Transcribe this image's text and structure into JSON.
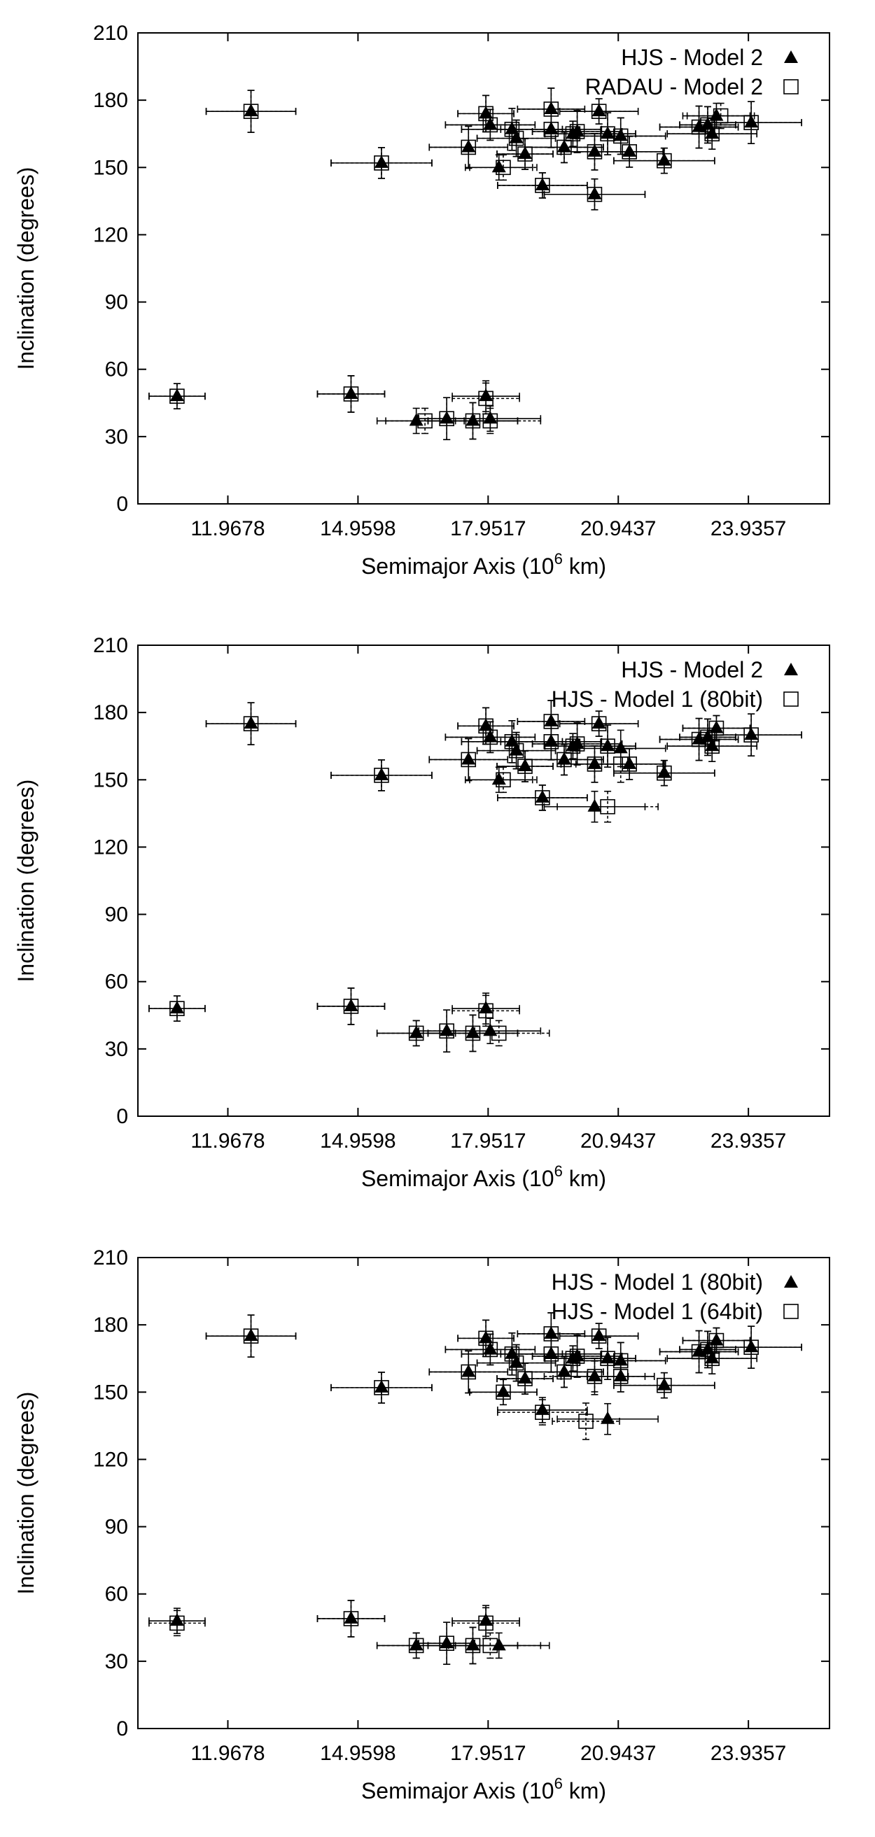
{
  "chart_data": [
    {
      "type": "scatter",
      "xlabel": "Semimajor Axis (10",
      "xlabel_sup": "6",
      "xlabel_tail": " km)",
      "ylabel": "Inclination (degrees)",
      "xlim": [
        9.9,
        25.8
      ],
      "ylim": [
        0,
        210
      ],
      "xticks": [
        "11.9678",
        "14.9598",
        "17.9517",
        "20.9437",
        "23.9357"
      ],
      "yticks": [
        "0",
        "30",
        "60",
        "90",
        "120",
        "150",
        "180",
        "210"
      ],
      "legend_position": "top-right",
      "series": [
        {
          "name": "HJS - Model 2",
          "marker": "triangle",
          "points": [
            [
              10.8,
              48
            ],
            [
              12.5,
              175
            ],
            [
              14.8,
              49
            ],
            [
              15.5,
              152
            ],
            [
              16.3,
              37
            ],
            [
              17.0,
              38
            ],
            [
              17.6,
              37
            ],
            [
              17.9,
              48
            ],
            [
              18.0,
              38
            ],
            [
              17.5,
              159
            ],
            [
              17.9,
              174
            ],
            [
              18.0,
              169
            ],
            [
              18.2,
              150
            ],
            [
              18.5,
              167
            ],
            [
              18.6,
              163
            ],
            [
              18.8,
              156
            ],
            [
              19.2,
              142
            ],
            [
              19.4,
              176
            ],
            [
              19.4,
              167
            ],
            [
              19.7,
              159
            ],
            [
              19.9,
              165
            ],
            [
              20.0,
              166
            ],
            [
              20.4,
              157
            ],
            [
              20.4,
              138
            ],
            [
              20.5,
              175
            ],
            [
              20.7,
              165
            ],
            [
              21.0,
              164
            ],
            [
              21.2,
              157
            ],
            [
              22.0,
              153
            ],
            [
              22.8,
              168
            ],
            [
              23.0,
              169
            ],
            [
              23.1,
              165
            ],
            [
              23.2,
              173
            ],
            [
              24.0,
              170
            ]
          ]
        },
        {
          "name": "RADAU - Model 2",
          "marker": "square-open",
          "points": [
            [
              10.8,
              48
            ],
            [
              12.5,
              175
            ],
            [
              14.8,
              49
            ],
            [
              15.5,
              152
            ],
            [
              16.5,
              37
            ],
            [
              17.0,
              38
            ],
            [
              17.6,
              37
            ],
            [
              17.9,
              47
            ],
            [
              18.0,
              37
            ],
            [
              17.5,
              159
            ],
            [
              17.9,
              174
            ],
            [
              18.0,
              169
            ],
            [
              18.3,
              150
            ],
            [
              18.5,
              167
            ],
            [
              18.6,
              163
            ],
            [
              18.8,
              156
            ],
            [
              19.2,
              142
            ],
            [
              19.4,
              176
            ],
            [
              19.4,
              167
            ],
            [
              19.7,
              159
            ],
            [
              19.9,
              165
            ],
            [
              20.0,
              166
            ],
            [
              20.4,
              157
            ],
            [
              20.4,
              138
            ],
            [
              20.5,
              175
            ],
            [
              20.7,
              165
            ],
            [
              21.0,
              164
            ],
            [
              21.2,
              157
            ],
            [
              22.0,
              153
            ],
            [
              22.8,
              168
            ],
            [
              23.0,
              169
            ],
            [
              23.1,
              165
            ],
            [
              23.3,
              173
            ],
            [
              24.0,
              170
            ]
          ]
        }
      ]
    },
    {
      "type": "scatter",
      "xlabel": "Semimajor Axis (10",
      "xlabel_sup": "6",
      "xlabel_tail": " km)",
      "ylabel": "Inclination (degrees)",
      "xlim": [
        9.9,
        25.8
      ],
      "ylim": [
        0,
        210
      ],
      "xticks": [
        "11.9678",
        "14.9598",
        "17.9517",
        "20.9437",
        "23.9357"
      ],
      "yticks": [
        "0",
        "30",
        "60",
        "90",
        "120",
        "150",
        "180",
        "210"
      ],
      "legend_position": "top-right",
      "series": [
        {
          "name": "HJS - Model 2",
          "marker": "triangle",
          "points": [
            [
              10.8,
              48
            ],
            [
              12.5,
              175
            ],
            [
              14.8,
              49
            ],
            [
              15.5,
              152
            ],
            [
              16.3,
              37
            ],
            [
              17.0,
              38
            ],
            [
              17.6,
              37
            ],
            [
              17.9,
              48
            ],
            [
              18.0,
              38
            ],
            [
              17.5,
              159
            ],
            [
              17.9,
              174
            ],
            [
              18.0,
              169
            ],
            [
              18.2,
              150
            ],
            [
              18.5,
              167
            ],
            [
              18.6,
              163
            ],
            [
              18.8,
              156
            ],
            [
              19.2,
              142
            ],
            [
              19.4,
              176
            ],
            [
              19.4,
              167
            ],
            [
              19.7,
              159
            ],
            [
              19.9,
              165
            ],
            [
              20.0,
              166
            ],
            [
              20.4,
              157
            ],
            [
              20.4,
              138
            ],
            [
              20.5,
              175
            ],
            [
              20.7,
              165
            ],
            [
              21.0,
              164
            ],
            [
              21.2,
              157
            ],
            [
              22.0,
              153
            ],
            [
              22.8,
              168
            ],
            [
              23.0,
              169
            ],
            [
              23.1,
              165
            ],
            [
              23.2,
              173
            ],
            [
              24.0,
              170
            ]
          ]
        },
        {
          "name": "HJS - Model 1 (80bit)",
          "marker": "square-open",
          "points": [
            [
              10.8,
              48
            ],
            [
              12.5,
              175
            ],
            [
              14.8,
              49
            ],
            [
              15.5,
              152
            ],
            [
              16.3,
              37
            ],
            [
              17.0,
              38
            ],
            [
              17.6,
              37
            ],
            [
              17.9,
              47
            ],
            [
              18.2,
              37
            ],
            [
              17.5,
              159
            ],
            [
              17.9,
              174
            ],
            [
              18.0,
              169
            ],
            [
              18.3,
              150
            ],
            [
              18.5,
              167
            ],
            [
              18.6,
              163
            ],
            [
              18.8,
              156
            ],
            [
              19.2,
              142
            ],
            [
              19.4,
              176
            ],
            [
              19.4,
              167
            ],
            [
              19.7,
              159
            ],
            [
              19.9,
              165
            ],
            [
              20.0,
              166
            ],
            [
              20.4,
              157
            ],
            [
              20.7,
              138
            ],
            [
              20.5,
              175
            ],
            [
              20.7,
              165
            ],
            [
              21.0,
              157
            ],
            [
              21.2,
              157
            ],
            [
              22.0,
              153
            ],
            [
              22.8,
              168
            ],
            [
              23.0,
              169
            ],
            [
              23.1,
              165
            ],
            [
              23.2,
              173
            ],
            [
              24.0,
              170
            ]
          ]
        }
      ]
    },
    {
      "type": "scatter",
      "xlabel": "Semimajor Axis (10",
      "xlabel_sup": "6",
      "xlabel_tail": " km)",
      "ylabel": "Inclination (degrees)",
      "xlim": [
        9.9,
        25.8
      ],
      "ylim": [
        0,
        210
      ],
      "xticks": [
        "11.9678",
        "14.9598",
        "17.9517",
        "20.9437",
        "23.9357"
      ],
      "yticks": [
        "0",
        "30",
        "60",
        "90",
        "120",
        "150",
        "180",
        "210"
      ],
      "legend_position": "top-right",
      "series": [
        {
          "name": "HJS - Model 1 (80bit)",
          "marker": "triangle",
          "points": [
            [
              10.8,
              48
            ],
            [
              12.5,
              175
            ],
            [
              14.8,
              49
            ],
            [
              15.5,
              152
            ],
            [
              16.3,
              37
            ],
            [
              17.0,
              38
            ],
            [
              17.6,
              37
            ],
            [
              17.9,
              48
            ],
            [
              18.2,
              37
            ],
            [
              17.5,
              159
            ],
            [
              17.9,
              174
            ],
            [
              18.0,
              169
            ],
            [
              18.3,
              150
            ],
            [
              18.5,
              167
            ],
            [
              18.6,
              163
            ],
            [
              18.8,
              156
            ],
            [
              19.2,
              142
            ],
            [
              19.4,
              176
            ],
            [
              19.4,
              167
            ],
            [
              19.7,
              159
            ],
            [
              19.9,
              165
            ],
            [
              20.0,
              166
            ],
            [
              20.4,
              157
            ],
            [
              20.7,
              138
            ],
            [
              20.5,
              175
            ],
            [
              20.7,
              165
            ],
            [
              21.0,
              164
            ],
            [
              21.0,
              157
            ],
            [
              22.0,
              153
            ],
            [
              22.8,
              168
            ],
            [
              23.0,
              169
            ],
            [
              23.1,
              165
            ],
            [
              23.2,
              173
            ],
            [
              24.0,
              170
            ]
          ]
        },
        {
          "name": "HJS - Model 1 (64bit)",
          "marker": "square-open",
          "points": [
            [
              10.8,
              47
            ],
            [
              12.5,
              175
            ],
            [
              14.8,
              49
            ],
            [
              15.5,
              152
            ],
            [
              16.3,
              37
            ],
            [
              17.0,
              38
            ],
            [
              17.6,
              37
            ],
            [
              17.9,
              47
            ],
            [
              18.0,
              37
            ],
            [
              17.5,
              159
            ],
            [
              17.9,
              174
            ],
            [
              18.0,
              169
            ],
            [
              18.3,
              150
            ],
            [
              18.5,
              167
            ],
            [
              18.6,
              163
            ],
            [
              18.8,
              156
            ],
            [
              19.2,
              141
            ],
            [
              19.4,
              176
            ],
            [
              19.4,
              167
            ],
            [
              19.7,
              159
            ],
            [
              19.9,
              165
            ],
            [
              20.0,
              166
            ],
            [
              20.2,
              137
            ],
            [
              20.4,
              157
            ],
            [
              20.5,
              175
            ],
            [
              20.7,
              165
            ],
            [
              21.0,
              164
            ],
            [
              21.0,
              157
            ],
            [
              22.0,
              153
            ],
            [
              22.8,
              168
            ],
            [
              23.0,
              169
            ],
            [
              23.1,
              165
            ],
            [
              23.2,
              173
            ],
            [
              24.0,
              170
            ]
          ]
        }
      ]
    }
  ]
}
